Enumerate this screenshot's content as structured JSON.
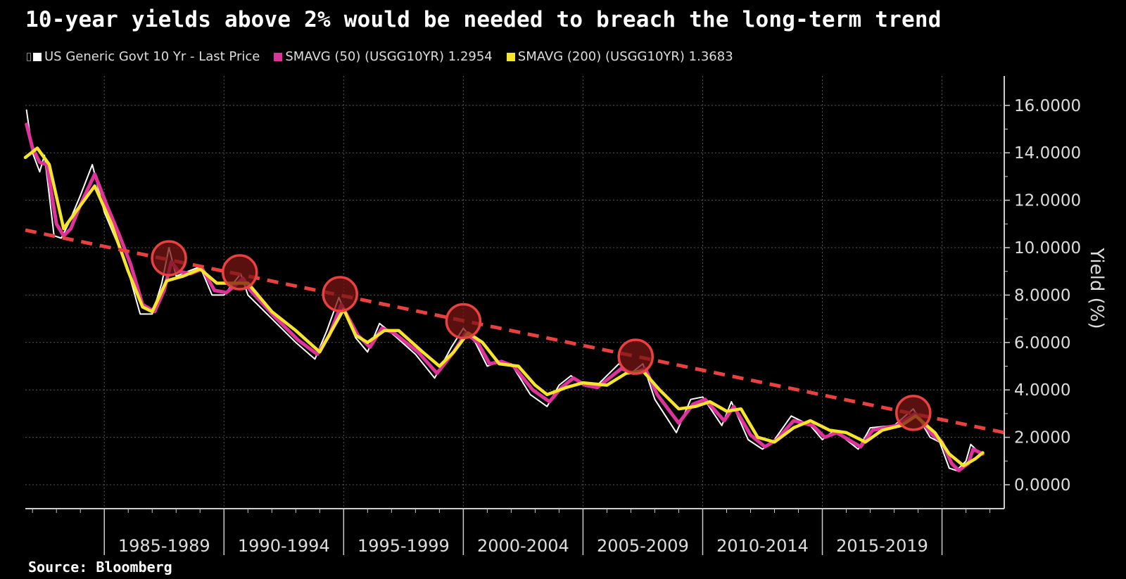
{
  "title": "10-year yields above 2% would be needed to breach the long-term trend",
  "source": "Source: Bloomberg",
  "chart_data": {
    "type": "line",
    "title": "10-year yields above 2% would be needed to breach the long-term trend",
    "ylabel": "Yield (%)",
    "xlabel": "",
    "xlim": [
      1981.7,
      2022.6
    ],
    "ylim": [
      -1,
      17.3
    ],
    "y_ticks": [
      "0.0000",
      "2.0000",
      "4.0000",
      "6.0000",
      "8.0000",
      "10.0000",
      "12.0000",
      "14.0000",
      "16.0000"
    ],
    "y_tick_values": [
      0,
      2,
      4,
      6,
      8,
      10,
      12,
      14,
      16
    ],
    "x_tick_labels": [
      "1985-1989",
      "1990-1994",
      "1995-1999",
      "2000-2004",
      "2005-2009",
      "2010-2014",
      "2015-2019"
    ],
    "x_tick_starts": [
      1985,
      1990,
      1995,
      2000,
      2005,
      2010,
      2015
    ],
    "grid": true,
    "y_axis_side": "right",
    "legend_placement": "top-left",
    "colors": {
      "background": "#000000",
      "last_price": "#ffffff",
      "sma50": "#e0329b",
      "sma200": "#f5e52c",
      "trend": "#e8413f",
      "circle_fill": "#7a1616",
      "circle_stroke": "#e8413f"
    },
    "series": [
      {
        "name": "US Generic Govt 10 Yr - Last Price",
        "color": "#ffffff",
        "x": [
          1981.75,
          1982.0,
          1982.3,
          1982.5,
          1982.9,
          1983.2,
          1983.5,
          1984.0,
          1984.5,
          1985.0,
          1985.5,
          1986.0,
          1986.5,
          1987.0,
          1987.4,
          1987.7,
          1988.0,
          1988.5,
          1989.0,
          1989.5,
          1990.0,
          1990.7,
          1991.0,
          1992.0,
          1993.0,
          1993.8,
          1994.3,
          1994.8,
          1995.5,
          1996.0,
          1996.5,
          1997.0,
          1998.0,
          1998.8,
          1999.5,
          2000.0,
          2000.5,
          2001.0,
          2001.5,
          2002.0,
          2002.8,
          2003.5,
          2004.0,
          2004.5,
          2005.0,
          2005.5,
          2006.5,
          2007.0,
          2007.5,
          2008.0,
          2008.9,
          2009.5,
          2010.0,
          2010.8,
          2011.2,
          2011.9,
          2012.5,
          2013.0,
          2013.7,
          2014.5,
          2015.0,
          2015.5,
          2016.5,
          2017.0,
          2018.0,
          2018.8,
          2019.5,
          2019.9,
          2020.3,
          2020.6,
          2021.0,
          2021.2,
          2021.6
        ],
        "values": [
          15.8,
          14.0,
          13.2,
          13.9,
          10.5,
          10.4,
          11.0,
          12.2,
          13.5,
          11.5,
          10.3,
          9.0,
          7.2,
          7.2,
          8.5,
          10.0,
          8.8,
          9.0,
          9.2,
          8.0,
          8.0,
          8.9,
          8.0,
          7.0,
          6.0,
          5.3,
          6.5,
          7.9,
          6.2,
          5.6,
          6.8,
          6.4,
          5.5,
          4.5,
          5.8,
          6.6,
          6.0,
          5.0,
          5.2,
          5.1,
          3.8,
          3.3,
          4.2,
          4.6,
          4.2,
          4.1,
          5.1,
          4.7,
          5.1,
          3.6,
          2.2,
          3.6,
          3.7,
          2.5,
          3.5,
          1.9,
          1.5,
          1.9,
          2.9,
          2.5,
          1.9,
          2.3,
          1.5,
          2.4,
          2.5,
          3.2,
          2.0,
          1.8,
          0.7,
          0.6,
          1.0,
          1.7,
          1.3
        ]
      },
      {
        "name": "SMAVG (50) (USGG10YR) 1.2954",
        "color": "#e0329b",
        "x": [
          1981.75,
          1982.0,
          1982.3,
          1982.6,
          1983.0,
          1983.3,
          1983.6,
          1984.0,
          1984.6,
          1985.1,
          1985.6,
          1986.1,
          1986.6,
          1987.1,
          1987.5,
          1987.8,
          1988.1,
          1988.6,
          1989.1,
          1989.6,
          1990.1,
          1990.8,
          1991.1,
          1992.1,
          1993.1,
          1993.9,
          1994.4,
          1994.9,
          1995.6,
          1996.1,
          1996.6,
          1997.1,
          1998.1,
          1998.9,
          1999.6,
          2000.1,
          2000.6,
          2001.1,
          2001.6,
          2002.1,
          2002.9,
          2003.6,
          2004.1,
          2004.6,
          2005.1,
          2005.6,
          2006.6,
          2007.1,
          2007.6,
          2008.1,
          2009.0,
          2009.6,
          2010.1,
          2010.9,
          2011.3,
          2012.0,
          2012.6,
          2013.1,
          2013.8,
          2014.6,
          2015.1,
          2015.6,
          2016.6,
          2017.1,
          2018.1,
          2018.9,
          2019.6,
          2020.0,
          2020.4,
          2020.7,
          2021.1,
          2021.3,
          2021.7
        ],
        "values": [
          15.2,
          14.2,
          13.6,
          13.5,
          11.0,
          10.5,
          10.8,
          11.8,
          13.1,
          11.8,
          10.6,
          9.3,
          7.6,
          7.3,
          8.2,
          9.4,
          9.0,
          8.9,
          9.1,
          8.2,
          8.1,
          8.7,
          8.2,
          7.1,
          6.1,
          5.5,
          6.3,
          7.6,
          6.3,
          5.8,
          6.6,
          6.4,
          5.6,
          4.7,
          5.6,
          6.4,
          6.0,
          5.1,
          5.2,
          5.0,
          4.0,
          3.5,
          4.1,
          4.5,
          4.2,
          4.1,
          4.9,
          4.7,
          4.9,
          3.8,
          2.6,
          3.4,
          3.6,
          2.7,
          3.3,
          2.1,
          1.6,
          1.9,
          2.7,
          2.5,
          2.0,
          2.2,
          1.6,
          2.3,
          2.5,
          3.0,
          2.1,
          1.8,
          0.9,
          0.6,
          0.9,
          1.5,
          1.3
        ]
      },
      {
        "name": "SMAVG (200) (USGG10YR) 1.3683",
        "color": "#f5e52c",
        "x": [
          1981.7,
          1982.2,
          1982.7,
          1983.3,
          1983.8,
          1984.6,
          1985.3,
          1986.0,
          1986.6,
          1987.0,
          1987.6,
          1988.3,
          1989.0,
          1989.7,
          1990.5,
          1991.0,
          1992.0,
          1993.0,
          1994.0,
          1994.5,
          1995.0,
          1995.5,
          1996.0,
          1996.7,
          1997.3,
          1998.3,
          1999.0,
          1999.6,
          2000.2,
          2000.8,
          2001.5,
          2002.3,
          2003.0,
          2003.5,
          2004.3,
          2005.0,
          2006.0,
          2006.8,
          2007.5,
          2008.2,
          2009.0,
          2009.7,
          2010.3,
          2011.0,
          2011.6,
          2012.3,
          2013.0,
          2013.8,
          2014.5,
          2015.3,
          2016.0,
          2016.8,
          2017.5,
          2018.3,
          2018.9,
          2019.7,
          2020.3,
          2020.9,
          2021.4,
          2021.7
        ],
        "values": [
          13.8,
          14.2,
          13.5,
          10.8,
          11.5,
          12.6,
          11.0,
          9.0,
          7.5,
          7.3,
          8.6,
          8.8,
          9.1,
          8.5,
          8.5,
          8.5,
          7.3,
          6.5,
          5.6,
          6.5,
          7.4,
          6.3,
          6.0,
          6.5,
          6.5,
          5.6,
          5.0,
          5.6,
          6.4,
          6.0,
          5.1,
          5.0,
          4.2,
          3.8,
          4.1,
          4.3,
          4.2,
          4.7,
          4.8,
          4.0,
          3.2,
          3.3,
          3.5,
          3.1,
          3.2,
          2.0,
          1.8,
          2.4,
          2.7,
          2.3,
          2.2,
          1.8,
          2.3,
          2.5,
          2.9,
          2.2,
          1.3,
          0.8,
          1.1,
          1.35
        ]
      }
    ],
    "trend_line": {
      "x": [
        1981.7,
        2022.6
      ],
      "values": [
        10.74,
        2.2
      ],
      "style": "dashed"
    },
    "highlight_circles": [
      {
        "x": 1987.7,
        "y": 9.55
      },
      {
        "x": 1990.66,
        "y": 8.96
      },
      {
        "x": 1994.85,
        "y": 8.04
      },
      {
        "x": 2000.0,
        "y": 6.9
      },
      {
        "x": 2007.2,
        "y": 5.4
      },
      {
        "x": 2018.8,
        "y": 3.03
      }
    ]
  }
}
